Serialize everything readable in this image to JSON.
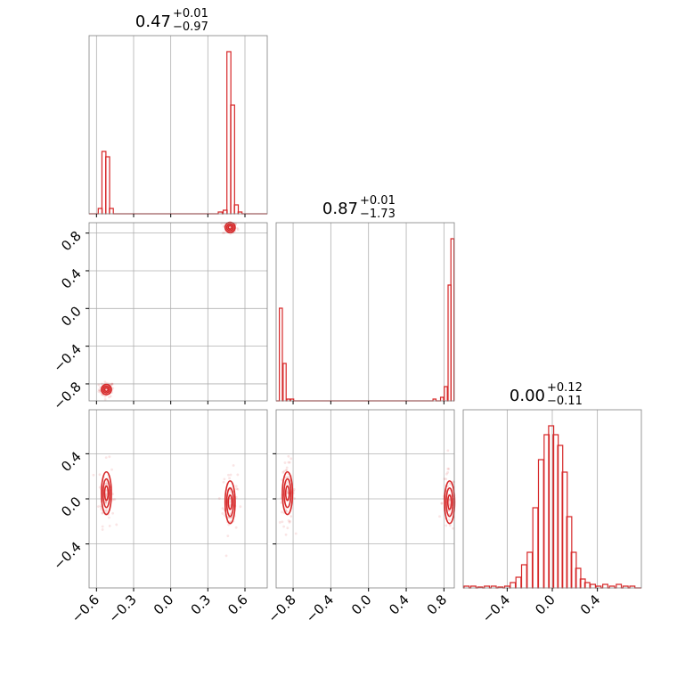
{
  "chart_data": {
    "type": "corner",
    "color": "#d62728",
    "parameters": [
      {
        "title_value": "0.47",
        "err_plus": "+0.01",
        "err_minus": "−0.97",
        "range": [
          -0.66,
          0.78
        ]
      },
      {
        "title_value": "0.87",
        "err_plus": "+0.01",
        "err_minus": "−1.73",
        "range": [
          -0.98,
          0.91
        ]
      },
      {
        "title_value": "0.00",
        "err_plus": "+0.12",
        "err_minus": "−0.11",
        "range": [
          -0.79,
          0.79
        ]
      }
    ],
    "ticks": {
      "p0": {
        "values": [
          -0.6,
          -0.3,
          0.0,
          0.3,
          0.6
        ],
        "labels": [
          "−0.6",
          "−0.3",
          "0.0",
          "0.3",
          "0.6"
        ]
      },
      "p1": {
        "values": [
          -0.8,
          -0.4,
          0.0,
          0.4,
          0.8
        ],
        "labels": [
          "−0.8",
          "−0.4",
          "0.0",
          "0.4",
          "0.8"
        ]
      },
      "p2": {
        "values": [
          -0.4,
          0.0,
          0.4
        ],
        "labels": [
          "−0.4",
          "0.0",
          "0.4"
        ]
      }
    },
    "histograms": {
      "p0": [
        {
          "x": -0.57,
          "y": 0.03
        },
        {
          "x": -0.54,
          "y": 0.35
        },
        {
          "x": -0.51,
          "y": 0.32
        },
        {
          "x": -0.48,
          "y": 0.03
        },
        {
          "x": 0.4,
          "y": 0.01
        },
        {
          "x": 0.44,
          "y": 0.02
        },
        {
          "x": 0.47,
          "y": 0.91
        },
        {
          "x": 0.5,
          "y": 0.61
        },
        {
          "x": 0.53,
          "y": 0.05
        },
        {
          "x": 0.56,
          "y": 0.01
        }
      ],
      "p1": [
        {
          "x": -0.93,
          "y": 0.52
        },
        {
          "x": -0.89,
          "y": 0.21
        },
        {
          "x": -0.85,
          "y": 0.01
        },
        {
          "x": -0.81,
          "y": 0.01
        },
        {
          "x": 0.7,
          "y": 0.01
        },
        {
          "x": 0.78,
          "y": 0.02
        },
        {
          "x": 0.82,
          "y": 0.08
        },
        {
          "x": 0.86,
          "y": 0.65
        },
        {
          "x": 0.89,
          "y": 0.91
        }
      ],
      "p2": [
        {
          "x": -0.76,
          "y": 0.01
        },
        {
          "x": -0.7,
          "y": 0.01
        },
        {
          "x": -0.64,
          "y": 0.005
        },
        {
          "x": -0.58,
          "y": 0.01
        },
        {
          "x": -0.52,
          "y": 0.01
        },
        {
          "x": -0.46,
          "y": 0.005
        },
        {
          "x": -0.4,
          "y": 0.01
        },
        {
          "x": -0.35,
          "y": 0.03
        },
        {
          "x": -0.3,
          "y": 0.06
        },
        {
          "x": -0.25,
          "y": 0.13
        },
        {
          "x": -0.2,
          "y": 0.2
        },
        {
          "x": -0.15,
          "y": 0.45
        },
        {
          "x": -0.1,
          "y": 0.72
        },
        {
          "x": -0.05,
          "y": 0.86
        },
        {
          "x": -0.01,
          "y": 0.91
        },
        {
          "x": 0.03,
          "y": 0.86
        },
        {
          "x": 0.07,
          "y": 0.8
        },
        {
          "x": 0.11,
          "y": 0.65
        },
        {
          "x": 0.15,
          "y": 0.4
        },
        {
          "x": 0.19,
          "y": 0.2
        },
        {
          "x": 0.23,
          "y": 0.11
        },
        {
          "x": 0.27,
          "y": 0.05
        },
        {
          "x": 0.31,
          "y": 0.03
        },
        {
          "x": 0.36,
          "y": 0.02
        },
        {
          "x": 0.41,
          "y": 0.01
        },
        {
          "x": 0.47,
          "y": 0.02
        },
        {
          "x": 0.53,
          "y": 0.01
        },
        {
          "x": 0.59,
          "y": 0.02
        },
        {
          "x": 0.65,
          "y": 0.01
        },
        {
          "x": 0.71,
          "y": 0.01
        }
      ]
    },
    "modes_2d": {
      "p0_p1": [
        {
          "x": -0.52,
          "y": -0.86
        },
        {
          "x": 0.48,
          "y": 0.86
        }
      ],
      "p0_p2": [
        {
          "x": -0.52,
          "y": 0.05
        },
        {
          "x": 0.48,
          "y": -0.03
        }
      ],
      "p1_p2": [
        {
          "x": -0.86,
          "y": 0.05
        },
        {
          "x": 0.86,
          "y": -0.03
        }
      ]
    },
    "grid": true
  }
}
